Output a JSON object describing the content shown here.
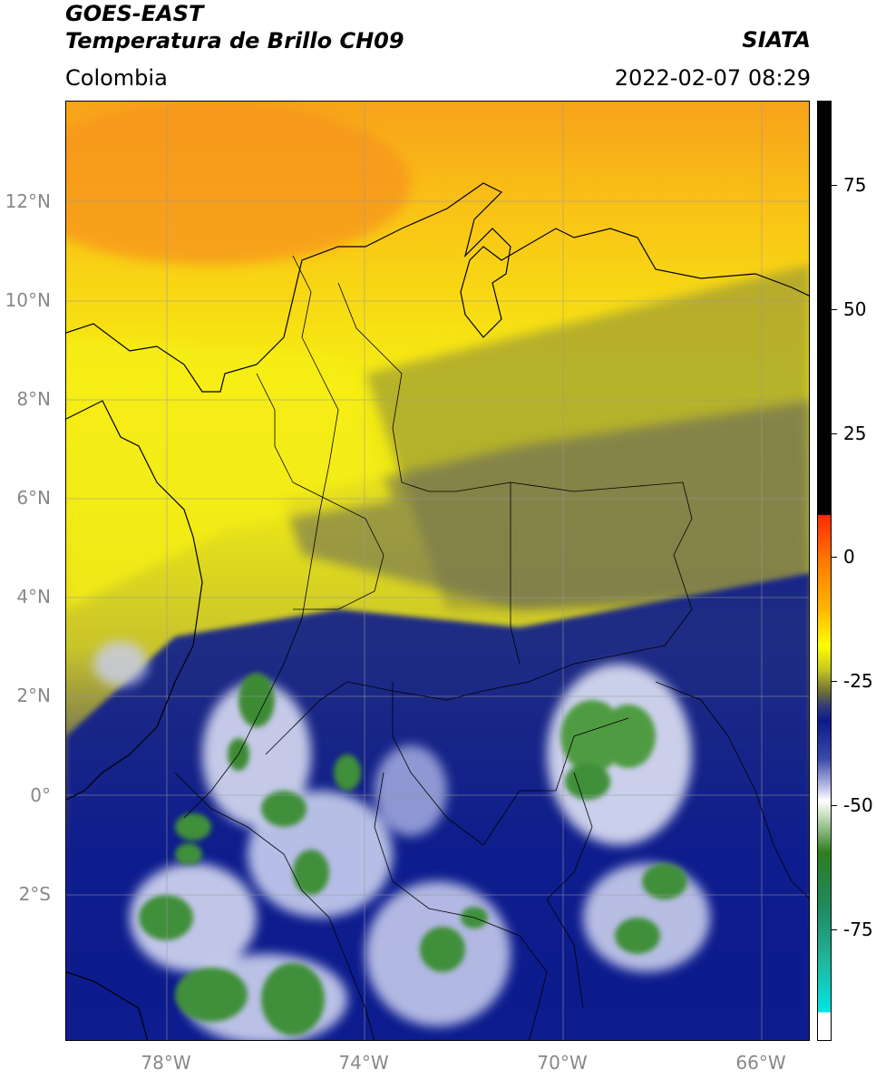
{
  "header": {
    "satellite": "GOES-EAST",
    "product": "Temperatura de Brillo CH09",
    "source": "SIATA",
    "region": "Colombia",
    "datetime": "2022-02-07 08:29"
  },
  "map": {
    "latitude_labels": [
      "12°N",
      "10°N",
      "8°N",
      "6°N",
      "4°N",
      "2°N",
      "0°",
      "2°S"
    ],
    "longitude_labels": [
      "78°W",
      "74°W",
      "70°W",
      "66°W"
    ]
  },
  "colorbar": {
    "tick_labels": [
      "75",
      "50",
      "25",
      "0",
      "-25",
      "-50",
      "-75"
    ],
    "colors": {
      "top_black": "#000000",
      "red": "#ff2a00",
      "orange": "#ff9a00",
      "yellow": "#ffff00",
      "olive": "#8a8a2a",
      "navy": "#0f1a8a",
      "white": "#ffffff",
      "green": "#2e7d20",
      "teal": "#20b090",
      "cyan": "#00e5e5"
    }
  }
}
